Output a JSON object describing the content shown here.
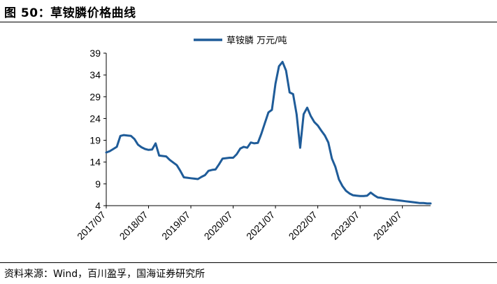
{
  "figure_title": "图 50：草铵膦价格曲线",
  "source_note": "资料来源：Wind，百川盈孚，国海证券研究所",
  "chart_data": {
    "type": "line",
    "legend": "草铵膦 万元/吨",
    "line_color": "#1F5C99",
    "y_ticks": [
      4,
      9,
      14,
      19,
      24,
      29,
      34,
      39
    ],
    "ylim": [
      4,
      39
    ],
    "x_tick_labels": [
      "2017/07",
      "2018/07",
      "2019/07",
      "2020/07",
      "2021/07",
      "2022/07",
      "2023/07",
      "2024/07"
    ],
    "xlim": [
      "2017-07",
      "2025-03"
    ],
    "grid": false,
    "legend_position": "top-center",
    "series": [
      {
        "name": "草铵膦 万元/吨",
        "x": [
          "2017-07",
          "2017-08",
          "2017-09",
          "2017-10",
          "2017-11",
          "2017-12",
          "2018-01",
          "2018-02",
          "2018-03",
          "2018-04",
          "2018-05",
          "2018-06",
          "2018-07",
          "2018-08",
          "2018-09",
          "2018-10",
          "2018-11",
          "2018-12",
          "2019-01",
          "2019-02",
          "2019-03",
          "2019-04",
          "2019-05",
          "2019-06",
          "2019-07",
          "2019-08",
          "2019-09",
          "2019-10",
          "2019-11",
          "2019-12",
          "2020-01",
          "2020-02",
          "2020-03",
          "2020-04",
          "2020-05",
          "2020-06",
          "2020-07",
          "2020-08",
          "2020-09",
          "2020-10",
          "2020-11",
          "2020-12",
          "2021-01",
          "2021-02",
          "2021-03",
          "2021-04",
          "2021-05",
          "2021-06",
          "2021-07",
          "2021-08",
          "2021-09",
          "2021-10",
          "2021-11",
          "2021-12",
          "2022-01",
          "2022-02",
          "2022-03",
          "2022-04",
          "2022-05",
          "2022-06",
          "2022-07",
          "2022-08",
          "2022-09",
          "2022-10",
          "2022-11",
          "2022-12",
          "2023-01",
          "2023-02",
          "2023-03",
          "2023-04",
          "2023-05",
          "2023-06",
          "2023-07",
          "2023-08",
          "2023-09",
          "2023-10",
          "2023-11",
          "2023-12",
          "2024-01",
          "2024-02",
          "2024-03",
          "2024-04",
          "2024-05",
          "2024-06",
          "2024-07",
          "2024-08",
          "2024-09",
          "2024-10",
          "2024-11",
          "2024-12",
          "2025-01",
          "2025-02",
          "2025-03"
        ],
        "y": [
          16.2,
          16.5,
          17.0,
          17.5,
          20.0,
          20.2,
          20.1,
          20.0,
          19.3,
          18.0,
          17.4,
          17.0,
          16.8,
          16.9,
          18.3,
          15.5,
          15.4,
          15.3,
          14.5,
          13.9,
          13.3,
          12.0,
          10.5,
          10.4,
          10.3,
          10.2,
          10.1,
          10.6,
          11.0,
          12.0,
          12.2,
          12.3,
          13.5,
          14.8,
          14.9,
          15.0,
          15.0,
          15.8,
          17.1,
          17.5,
          17.3,
          18.5,
          18.3,
          18.4,
          20.5,
          23.0,
          25.4,
          26.0,
          32.0,
          36.0,
          37.0,
          35.0,
          30.0,
          29.6,
          25.0,
          17.3,
          25.0,
          26.5,
          24.6,
          23.2,
          22.4,
          21.2,
          20.1,
          18.5,
          14.8,
          12.9,
          10.0,
          8.5,
          7.4,
          6.8,
          6.4,
          6.3,
          6.2,
          6.2,
          6.3,
          7.0,
          6.4,
          5.9,
          5.8,
          5.6,
          5.5,
          5.4,
          5.3,
          5.2,
          5.1,
          5.0,
          4.9,
          4.8,
          4.7,
          4.6,
          4.6,
          4.5,
          4.5
        ]
      }
    ]
  }
}
